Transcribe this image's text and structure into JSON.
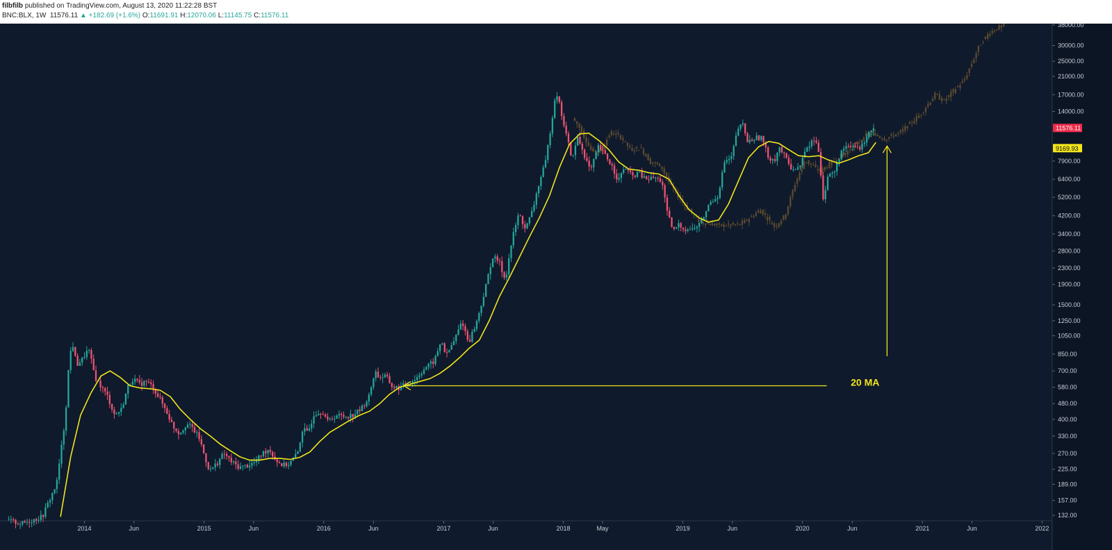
{
  "header": {
    "author": "filbfilb",
    "published_text": "published on TradingView.com, August 13, 2020 11:22:28 BST",
    "symbol": "BNC:BLX, 1W",
    "last": "11576.11",
    "change": "▲ +182.69 (+1.6%)",
    "o_label": "O:",
    "o": "11691.91",
    "h_label": "H:",
    "h": "12070.06",
    "l_label": "L:",
    "l": "11145.75",
    "c_label": "C:",
    "c": "11576.11"
  },
  "colors": {
    "background": "#0f1a2c",
    "up": "#26a69a",
    "down": "#ef5370",
    "ma": "#f2e51c",
    "fractal": "#6b5430",
    "price_badge": "#ef2b4b",
    "ma_badge": "#f2e51c"
  },
  "chart_data": {
    "type": "candlestick",
    "scale": "log",
    "ylim": [
      125,
      38000
    ],
    "xlim": [
      "2013-05-01",
      "2022-02-01"
    ],
    "y_ticks": [
      "38000.00",
      "30000.00",
      "25000.00",
      "21000.00",
      "17000.00",
      "14000.00",
      "11576.11",
      "9169.93",
      "7900.00",
      "6400.00",
      "5200.00",
      "4200.00",
      "3400.00",
      "2800.00",
      "2300.00",
      "1900.00",
      "1500.00",
      "1250.00",
      "1050.00",
      "850.00",
      "700.00",
      "580.00",
      "480.00",
      "400.00",
      "330.00",
      "270.00",
      "225.00",
      "189.00",
      "157.00",
      "132.00"
    ],
    "x_ticks": [
      {
        "label": "2014",
        "date": "2014-01-01"
      },
      {
        "label": "Jun",
        "date": "2014-06-01"
      },
      {
        "label": "2015",
        "date": "2015-01-01"
      },
      {
        "label": "Jun",
        "date": "2015-06-01"
      },
      {
        "label": "2016",
        "date": "2016-01-01"
      },
      {
        "label": "Jun",
        "date": "2016-06-01"
      },
      {
        "label": "2017",
        "date": "2017-01-01"
      },
      {
        "label": "Jun",
        "date": "2017-06-01"
      },
      {
        "label": "2018",
        "date": "2018-01-01"
      },
      {
        "label": "May",
        "date": "2018-05-01"
      },
      {
        "label": "2019",
        "date": "2019-01-01"
      },
      {
        "label": "Jun",
        "date": "2019-06-01"
      },
      {
        "label": "2020",
        "date": "2020-01-01"
      },
      {
        "label": "Jun",
        "date": "2020-06-01"
      },
      {
        "label": "2021",
        "date": "2021-01-01"
      },
      {
        "label": "Jun",
        "date": "2021-06-01"
      },
      {
        "label": "2022",
        "date": "2022-01-01"
      }
    ],
    "price_series": [
      [
        "2013-05-15",
        125
      ],
      [
        "2013-07-01",
        120
      ],
      [
        "2013-09-01",
        130
      ],
      [
        "2013-10-15",
        190
      ],
      [
        "2013-11-10",
        400
      ],
      [
        "2013-11-20",
        700
      ],
      [
        "2013-12-01",
        1000
      ],
      [
        "2013-12-15",
        750
      ],
      [
        "2014-01-01",
        800
      ],
      [
        "2014-01-20",
        900
      ],
      [
        "2014-02-10",
        650
      ],
      [
        "2014-03-01",
        580
      ],
      [
        "2014-03-20",
        520
      ],
      [
        "2014-04-10",
        420
      ],
      [
        "2014-05-01",
        450
      ],
      [
        "2014-05-20",
        580
      ],
      [
        "2014-06-05",
        640
      ],
      [
        "2014-06-25",
        600
      ],
      [
        "2014-07-15",
        620
      ],
      [
        "2014-08-05",
        580
      ],
      [
        "2014-08-25",
        510
      ],
      [
        "2014-09-15",
        440
      ],
      [
        "2014-10-05",
        370
      ],
      [
        "2014-10-25",
        340
      ],
      [
        "2014-11-15",
        380
      ],
      [
        "2014-12-05",
        360
      ],
      [
        "2014-12-25",
        320
      ],
      [
        "2015-01-10",
        260
      ],
      [
        "2015-01-25",
        220
      ],
      [
        "2015-02-15",
        240
      ],
      [
        "2015-03-10",
        270
      ],
      [
        "2015-04-01",
        245
      ],
      [
        "2015-04-25",
        230
      ],
      [
        "2015-05-20",
        235
      ],
      [
        "2015-06-15",
        245
      ],
      [
        "2015-07-05",
        270
      ],
      [
        "2015-07-25",
        285
      ],
      [
        "2015-08-15",
        250
      ],
      [
        "2015-09-05",
        235
      ],
      [
        "2015-09-25",
        240
      ],
      [
        "2015-10-20",
        270
      ],
      [
        "2015-11-05",
        360
      ],
      [
        "2015-11-20",
        340
      ],
      [
        "2015-12-10",
        430
      ],
      [
        "2016-01-05",
        440
      ],
      [
        "2016-01-20",
        390
      ],
      [
        "2016-02-15",
        420
      ],
      [
        "2016-03-10",
        415
      ],
      [
        "2016-04-05",
        420
      ],
      [
        "2016-05-01",
        450
      ],
      [
        "2016-05-25",
        520
      ],
      [
        "2016-06-12",
        700
      ],
      [
        "2016-06-25",
        650
      ],
      [
        "2016-07-15",
        660
      ],
      [
        "2016-08-05",
        580
      ],
      [
        "2016-08-25",
        575
      ],
      [
        "2016-09-20",
        605
      ],
      [
        "2016-10-15",
        640
      ],
      [
        "2016-11-10",
        720
      ],
      [
        "2016-12-10",
        780
      ],
      [
        "2017-01-02",
        1000
      ],
      [
        "2017-01-15",
        830
      ],
      [
        "2017-02-10",
        1000
      ],
      [
        "2017-03-05",
        1250
      ],
      [
        "2017-03-25",
        970
      ],
      [
        "2017-04-20",
        1250
      ],
      [
        "2017-05-15",
        1800
      ],
      [
        "2017-06-05",
        2600
      ],
      [
        "2017-06-25",
        2500
      ],
      [
        "2017-07-15",
        2000
      ],
      [
        "2017-08-05",
        3200
      ],
      [
        "2017-08-25",
        4300
      ],
      [
        "2017-09-15",
        3600
      ],
      [
        "2017-10-05",
        4400
      ],
      [
        "2017-10-25",
        6000
      ],
      [
        "2017-11-15",
        7800
      ],
      [
        "2017-12-05",
        13000
      ],
      [
        "2017-12-17",
        18000
      ],
      [
        "2018-01-01",
        14000
      ],
      [
        "2018-01-15",
        11000
      ],
      [
        "2018-02-05",
        8000
      ],
      [
        "2018-02-20",
        10500
      ],
      [
        "2018-03-10",
        8800
      ],
      [
        "2018-04-01",
        7000
      ],
      [
        "2018-04-25",
        9300
      ],
      [
        "2018-05-15",
        8500
      ],
      [
        "2018-06-05",
        7500
      ],
      [
        "2018-06-25",
        6300
      ],
      [
        "2018-07-15",
        7400
      ],
      [
        "2018-08-05",
        6600
      ],
      [
        "2018-08-25",
        6900
      ],
      [
        "2018-09-15",
        6400
      ],
      [
        "2018-10-10",
        6500
      ],
      [
        "2018-11-05",
        6300
      ],
      [
        "2018-11-20",
        4400
      ],
      [
        "2018-12-10",
        3500
      ],
      [
        "2018-12-25",
        3800
      ],
      [
        "2019-01-15",
        3600
      ],
      [
        "2019-02-10",
        3600
      ],
      [
        "2019-03-05",
        3900
      ],
      [
        "2019-04-01",
        4900
      ],
      [
        "2019-04-25",
        5300
      ],
      [
        "2019-05-15",
        7800
      ],
      [
        "2019-06-05",
        8200
      ],
      [
        "2019-06-25",
        11500
      ],
      [
        "2019-07-10",
        12000
      ],
      [
        "2019-07-25",
        9800
      ],
      [
        "2019-08-15",
        10300
      ],
      [
        "2019-09-05",
        10400
      ],
      [
        "2019-09-25",
        8300
      ],
      [
        "2019-10-15",
        8000
      ],
      [
        "2019-10-28",
        9300
      ],
      [
        "2019-11-15",
        8300
      ],
      [
        "2019-12-05",
        7300
      ],
      [
        "2019-12-25",
        7200
      ],
      [
        "2020-01-15",
        8700
      ],
      [
        "2020-02-10",
        10200
      ],
      [
        "2020-02-25",
        9300
      ],
      [
        "2020-03-12",
        5000
      ],
      [
        "2020-03-25",
        6600
      ],
      [
        "2020-04-15",
        7000
      ],
      [
        "2020-05-05",
        8900
      ],
      [
        "2020-05-25",
        9200
      ],
      [
        "2020-06-15",
        9400
      ],
      [
        "2020-07-05",
        9100
      ],
      [
        "2020-07-25",
        11000
      ],
      [
        "2020-08-12",
        11576
      ]
    ],
    "fractal_series": [
      [
        "2018-02-05",
        13000
      ],
      [
        "2018-03-01",
        11500
      ],
      [
        "2018-04-01",
        9000
      ],
      [
        "2018-05-01",
        8800
      ],
      [
        "2018-06-01",
        11000
      ],
      [
        "2018-07-01",
        10500
      ],
      [
        "2018-08-01",
        9000
      ],
      [
        "2018-09-01",
        9200
      ],
      [
        "2018-10-01",
        7800
      ],
      [
        "2018-11-01",
        7500
      ],
      [
        "2018-12-01",
        6000
      ],
      [
        "2019-01-15",
        4700
      ],
      [
        "2019-03-01",
        3900
      ],
      [
        "2019-05-01",
        3750
      ],
      [
        "2019-07-01",
        3800
      ],
      [
        "2019-08-01",
        4100
      ],
      [
        "2019-09-01",
        4500
      ],
      [
        "2019-10-15",
        3700
      ],
      [
        "2019-11-15",
        4200
      ],
      [
        "2019-12-15",
        6000
      ],
      [
        "2020-01-15",
        8000
      ],
      [
        "2020-03-01",
        7000
      ],
      [
        "2020-04-15",
        8000
      ],
      [
        "2020-06-01",
        9000
      ],
      [
        "2020-08-01",
        11000
      ],
      [
        "2020-09-15",
        10200
      ],
      [
        "2020-11-01",
        11000
      ],
      [
        "2021-01-01",
        13500
      ],
      [
        "2021-02-15",
        17000
      ],
      [
        "2021-03-15",
        15800
      ],
      [
        "2021-04-15",
        18000
      ],
      [
        "2021-05-15",
        20000
      ],
      [
        "2021-07-01",
        30000
      ],
      [
        "2021-08-01",
        35000
      ],
      [
        "2021-09-15",
        38000
      ]
    ],
    "ma_series": [
      [
        "2013-10-20",
        130
      ],
      [
        "2013-11-20",
        260
      ],
      [
        "2013-12-20",
        420
      ],
      [
        "2014-01-20",
        540
      ],
      [
        "2014-02-20",
        660
      ],
      [
        "2014-03-20",
        700
      ],
      [
        "2014-04-20",
        650
      ],
      [
        "2014-05-20",
        590
      ],
      [
        "2014-06-20",
        575
      ],
      [
        "2014-07-20",
        570
      ],
      [
        "2014-08-20",
        560
      ],
      [
        "2014-09-20",
        520
      ],
      [
        "2014-10-20",
        450
      ],
      [
        "2014-11-20",
        400
      ],
      [
        "2014-12-20",
        360
      ],
      [
        "2015-01-20",
        330
      ],
      [
        "2015-02-20",
        300
      ],
      [
        "2015-03-20",
        280
      ],
      [
        "2015-04-20",
        260
      ],
      [
        "2015-05-20",
        250
      ],
      [
        "2015-06-20",
        250
      ],
      [
        "2015-07-20",
        255
      ],
      [
        "2015-08-20",
        255
      ],
      [
        "2015-09-20",
        252
      ],
      [
        "2015-10-20",
        258
      ],
      [
        "2015-11-20",
        275
      ],
      [
        "2015-12-20",
        310
      ],
      [
        "2016-01-20",
        345
      ],
      [
        "2016-02-20",
        370
      ],
      [
        "2016-03-20",
        395
      ],
      [
        "2016-04-20",
        420
      ],
      [
        "2016-05-20",
        440
      ],
      [
        "2016-06-20",
        480
      ],
      [
        "2016-07-20",
        535
      ],
      [
        "2016-08-20",
        580
      ],
      [
        "2016-09-20",
        600
      ],
      [
        "2016-10-20",
        620
      ],
      [
        "2016-11-20",
        640
      ],
      [
        "2016-12-20",
        680
      ],
      [
        "2017-01-20",
        740
      ],
      [
        "2017-02-20",
        820
      ],
      [
        "2017-03-20",
        910
      ],
      [
        "2017-04-20",
        1000
      ],
      [
        "2017-05-20",
        1250
      ],
      [
        "2017-06-20",
        1650
      ],
      [
        "2017-07-20",
        2050
      ],
      [
        "2017-08-20",
        2600
      ],
      [
        "2017-09-20",
        3300
      ],
      [
        "2017-10-20",
        4100
      ],
      [
        "2017-11-20",
        5300
      ],
      [
        "2017-12-20",
        7300
      ],
      [
        "2018-01-20",
        9600
      ],
      [
        "2018-02-20",
        10800
      ],
      [
        "2018-03-20",
        10900
      ],
      [
        "2018-04-20",
        10000
      ],
      [
        "2018-05-20",
        9000
      ],
      [
        "2018-06-20",
        7800
      ],
      [
        "2018-07-20",
        7200
      ],
      [
        "2018-08-20",
        7100
      ],
      [
        "2018-09-20",
        6900
      ],
      [
        "2018-10-20",
        6800
      ],
      [
        "2018-11-20",
        6400
      ],
      [
        "2018-12-20",
        5300
      ],
      [
        "2019-01-20",
        4500
      ],
      [
        "2019-02-20",
        4100
      ],
      [
        "2019-03-20",
        3900
      ],
      [
        "2019-04-20",
        4000
      ],
      [
        "2019-05-20",
        4800
      ],
      [
        "2019-06-20",
        6300
      ],
      [
        "2019-07-20",
        8200
      ],
      [
        "2019-08-20",
        9300
      ],
      [
        "2019-09-20",
        9900
      ],
      [
        "2019-10-20",
        9700
      ],
      [
        "2019-11-20",
        9000
      ],
      [
        "2019-12-20",
        8400
      ],
      [
        "2020-01-20",
        8300
      ],
      [
        "2020-02-20",
        8400
      ],
      [
        "2020-03-20",
        8000
      ],
      [
        "2020-04-20",
        7700
      ],
      [
        "2020-05-20",
        8000
      ],
      [
        "2020-06-20",
        8400
      ],
      [
        "2020-07-20",
        8700
      ],
      [
        "2020-08-12",
        9800
      ]
    ],
    "price_badge": "11576.11",
    "ma_badge": "9169.93",
    "annotation": {
      "text": "20 MA",
      "hline_price": 590,
      "hline_from": "2016-09-01",
      "hline_to": "2020-03-15",
      "text_date": "2020-07-10",
      "text_price": 615,
      "arrow_date": "2020-09-15",
      "arrow_from_price": 830,
      "arrow_to_price": 9400
    }
  }
}
